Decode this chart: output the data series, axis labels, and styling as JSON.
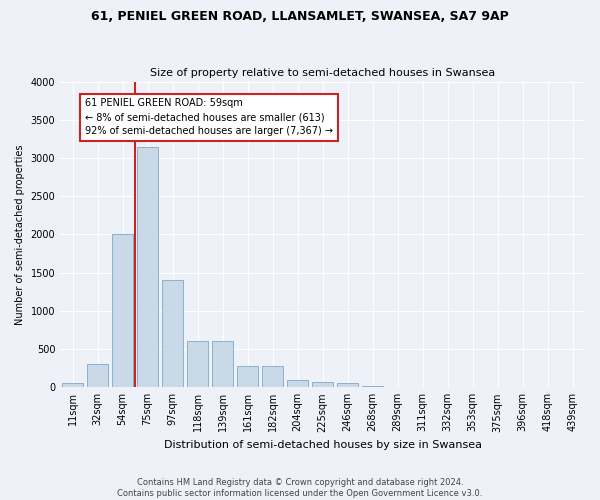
{
  "title": "61, PENIEL GREEN ROAD, LLANSAMLET, SWANSEA, SA7 9AP",
  "subtitle": "Size of property relative to semi-detached houses in Swansea",
  "xlabel": "Distribution of semi-detached houses by size in Swansea",
  "ylabel": "Number of semi-detached properties",
  "footnote": "Contains HM Land Registry data © Crown copyright and database right 2024.\nContains public sector information licensed under the Open Government Licence v3.0.",
  "annotation_line1": "61 PENIEL GREEN ROAD: 59sqm",
  "annotation_line2": "← 8% of semi-detached houses are smaller (613)",
  "annotation_line3": "92% of semi-detached houses are larger (7,367) →",
  "bar_color": "#c9d9e8",
  "bar_edge_color": "#7aaac8",
  "highlight_color": "#cc2222",
  "background_color": "#eef2f8",
  "categories": [
    "11sqm",
    "32sqm",
    "54sqm",
    "75sqm",
    "97sqm",
    "118sqm",
    "139sqm",
    "161sqm",
    "182sqm",
    "204sqm",
    "225sqm",
    "246sqm",
    "268sqm",
    "289sqm",
    "311sqm",
    "332sqm",
    "353sqm",
    "375sqm",
    "396sqm",
    "418sqm",
    "439sqm"
  ],
  "values": [
    50,
    300,
    2000,
    3150,
    1400,
    600,
    600,
    280,
    280,
    100,
    70,
    50,
    20,
    10,
    5,
    3,
    2,
    1,
    1,
    0,
    0
  ],
  "property_bin_index": 2,
  "red_line_x": 2.5,
  "ylim": [
    0,
    4000
  ],
  "yticks": [
    0,
    500,
    1000,
    1500,
    2000,
    2500,
    3000,
    3500,
    4000
  ],
  "title_fontsize": 9,
  "subtitle_fontsize": 8,
  "xlabel_fontsize": 8,
  "ylabel_fontsize": 7,
  "tick_fontsize": 7,
  "footnote_fontsize": 6
}
